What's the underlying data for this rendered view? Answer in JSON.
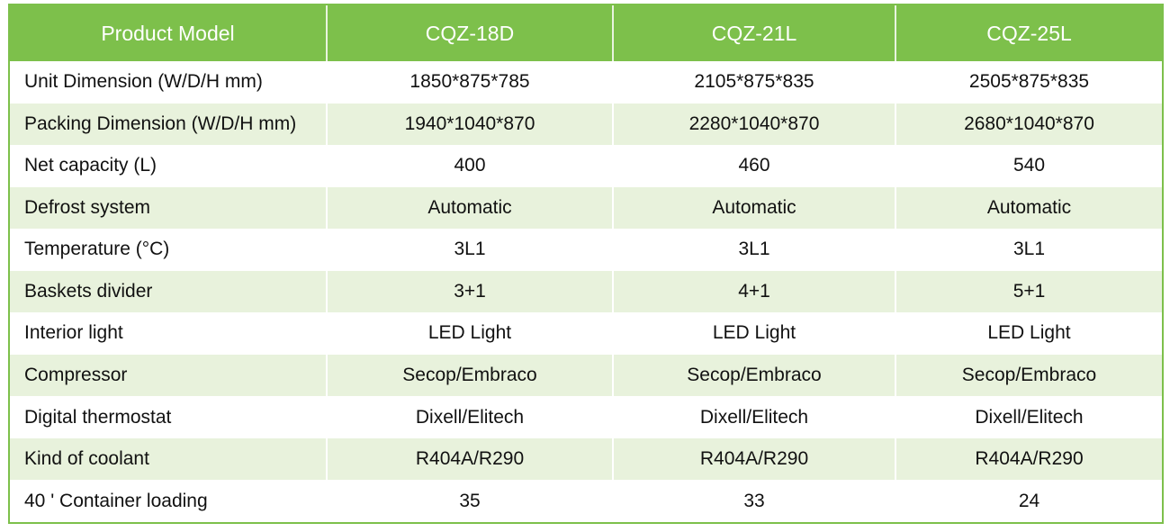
{
  "table": {
    "header": [
      "Product Model",
      "CQZ-18D",
      "CQZ-21L",
      "CQZ-25L"
    ],
    "rows": [
      [
        "Unit Dimension (W/D/H mm)",
        "1850*875*785",
        "2105*875*835",
        "2505*875*835"
      ],
      [
        "Packing Dimension (W/D/H mm)",
        "1940*1040*870",
        "2280*1040*870",
        "2680*1040*870"
      ],
      [
        "Net capacity (L)",
        "400",
        "460",
        "540"
      ],
      [
        "Defrost system",
        "Automatic",
        "Automatic",
        "Automatic"
      ],
      [
        "Temperature (°C)",
        "3L1",
        "3L1",
        "3L1"
      ],
      [
        "Baskets divider",
        "3+1",
        "4+1",
        "5+1"
      ],
      [
        "Interior light",
        "LED Light",
        "LED Light",
        "LED Light"
      ],
      [
        "Compressor",
        "Secop/Embraco",
        "Secop/Embraco",
        "Secop/Embraco"
      ],
      [
        "Digital thermostat",
        "Dixell/Elitech",
        "Dixell/Elitech",
        "Dixell/Elitech"
      ],
      [
        "Kind of coolant",
        "R404A/R290",
        "R404A/R290",
        "R404A/R290"
      ],
      [
        "40 ' Container loading",
        "35",
        "33",
        "24"
      ]
    ]
  }
}
